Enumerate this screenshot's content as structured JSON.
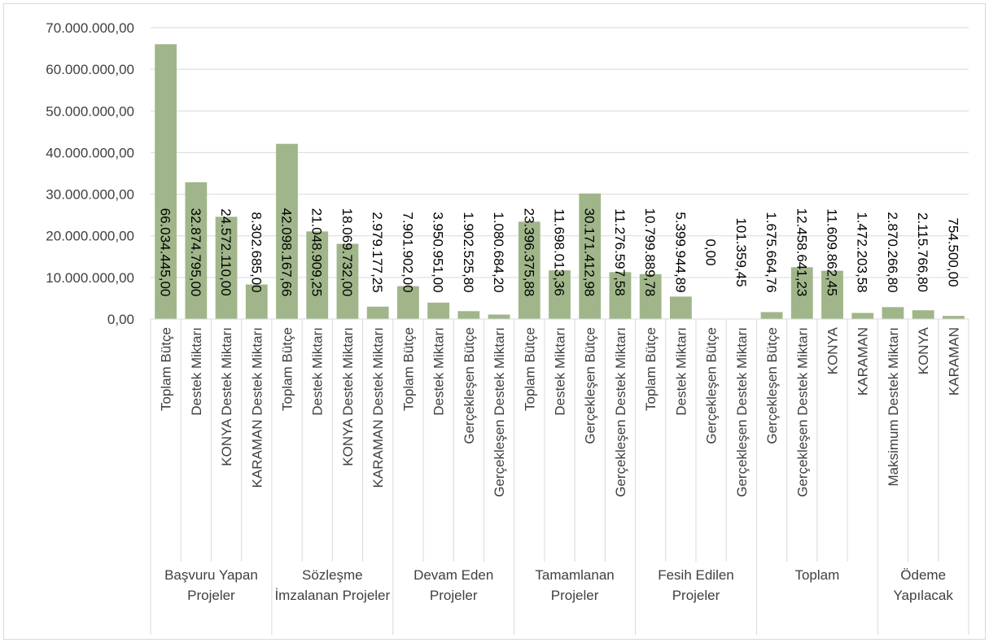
{
  "chart_data": {
    "type": "bar",
    "color": "#a0b68a",
    "grid": true,
    "ylim": [
      0,
      70000000
    ],
    "yticks": [
      {
        "value": 0,
        "label": "0,00"
      },
      {
        "value": 10000000,
        "label": "10.000.000,00"
      },
      {
        "value": 20000000,
        "label": "20.000.000,00"
      },
      {
        "value": 30000000,
        "label": "30.000.000,00"
      },
      {
        "value": 40000000,
        "label": "40.000.000,00"
      },
      {
        "value": 50000000,
        "label": "50.000.000,00"
      },
      {
        "value": 60000000,
        "label": "60.000.000,00"
      },
      {
        "value": 70000000,
        "label": "70.000.000,00"
      }
    ],
    "groups": [
      {
        "name": "Başvuru Yapan Projeler",
        "categories": [
          "Toplam Bütçe",
          "Destek Miktarı",
          "KONYA Destek Miktarı",
          "KARAMAN Destek Miktarı"
        ],
        "values": [
          66034445.0,
          32874795.0,
          24572110.0,
          8302685.0
        ],
        "value_labels": [
          "66.034.445,00",
          "32.874.795,00",
          "24.572.110,00",
          "8.302.685,00"
        ]
      },
      {
        "name": "Sözleşme İmzalanan Projeler",
        "categories": [
          "Toplam Bütçe",
          "Destek Miktarı",
          "KONYA Destek Miktarı",
          "KARAMAN Destek Miktarı"
        ],
        "values": [
          42098167.66,
          21048909.25,
          18069732.0,
          2979177.25
        ],
        "value_labels": [
          "42.098.167,66",
          "21.048.909,25",
          "18.069.732,00",
          "2.979.177,25"
        ]
      },
      {
        "name": "Devam Eden Projeler",
        "categories": [
          "Toplam Bütçe",
          "Destek Miktarı",
          "Gerçekleşen Bütçe",
          "Gerçekleşen Destek Miktarı"
        ],
        "values": [
          7901902.0,
          3950951.0,
          1902525.8,
          1080684.2
        ],
        "value_labels": [
          "7.901.902,00",
          "3.950.951,00",
          "1.902.525,80",
          "1.080.684,20"
        ]
      },
      {
        "name": "Tamamlanan Projeler",
        "categories": [
          "Toplam Bütçe",
          "Destek Miktarı",
          "Gerçekleşen Bütçe",
          "Gerçekleşen Destek Miktarı"
        ],
        "values": [
          23396375.88,
          11698013.36,
          30171412.98,
          11276597.58
        ],
        "value_labels": [
          "23.396.375,88",
          "11.698.013,36",
          "30.171.412,98",
          "11.276.597,58"
        ]
      },
      {
        "name": "Fesih Edilen Projeler",
        "categories": [
          "Toplam Bütçe",
          "Destek Miktarı",
          "Gerçekleşen Bütçe",
          "Gerçekleşen Destek Miktarı"
        ],
        "values": [
          10799889.78,
          5399944.89,
          0.0,
          101359.45
        ],
        "value_labels": [
          "10.799.889,78",
          "5.399.944,89",
          "0,00",
          "101.359,45"
        ]
      },
      {
        "name": "Toplam",
        "categories": [
          "Gerçekleşen Bütçe",
          "Gerçekleşen Destek Miktarı",
          "KONYA",
          "KARAMAN"
        ],
        "values": [
          1675664.76,
          12458641.23,
          11609862.45,
          1472203.58
        ],
        "value_labels": [
          "1.675.664,76",
          "12.458.641,23",
          "11.609.862,45",
          "1.472.203,58"
        ]
      },
      {
        "name": "Ödeme Yapılacak",
        "categories": [
          "Maksimum Destek Miktarı",
          "KONYA",
          "KARAMAN"
        ],
        "values": [
          2870266.8,
          2115766.8,
          754500.0
        ],
        "value_labels": [
          "2.870.266,80",
          "2.115.766,80",
          "754.500,00"
        ]
      }
    ]
  }
}
